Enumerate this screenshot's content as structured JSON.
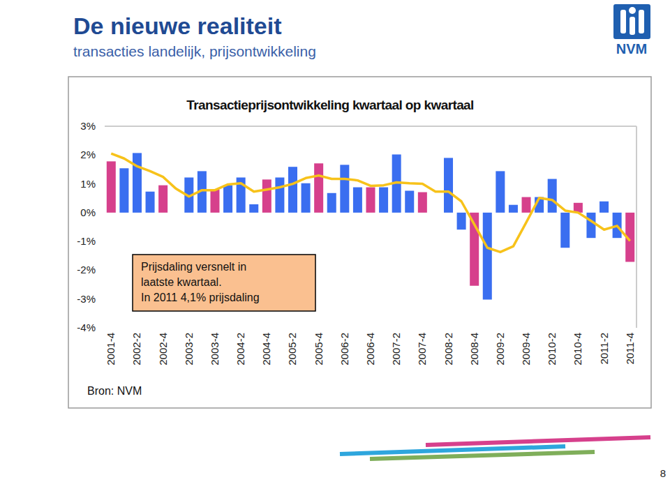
{
  "header": {
    "title": "De nieuwe realiteit",
    "subtitle": "transacties landelijk, prijsontwikkeling",
    "logo_text": "NVM"
  },
  "chart_data": {
    "type": "bar",
    "title": "Transactieprijsontwikkeling kwartaal op kwartaal",
    "categories": [
      "2001-4",
      null,
      "2002-2",
      null,
      "2002-4",
      null,
      "2003-2",
      null,
      "2003-4",
      null,
      "2004-2",
      null,
      "2004-4",
      null,
      "2005-2",
      null,
      "2005-4",
      null,
      "2006-2",
      null,
      "2006-4",
      null,
      "2007-2",
      null,
      "2007-4",
      null,
      "2008-2",
      null,
      "2008-4",
      null,
      "2009-2",
      null,
      "2009-4",
      null,
      "2010-2",
      null,
      "2010-4",
      null,
      "2011-2",
      null,
      "2011-4"
    ],
    "series": [
      {
        "type": "bar",
        "colors": [
          "#D6408C",
          "#3A6EF0",
          "#3A6EF0",
          "#3A6EF0",
          "#D6408C",
          "#3A6EF0",
          "#3A6EF0",
          "#3A6EF0",
          "#D6408C",
          "#3A6EF0",
          "#3A6EF0",
          "#3A6EF0",
          "#D6408C",
          "#3A6EF0",
          "#3A6EF0",
          "#3A6EF0",
          "#D6408C",
          "#3A6EF0",
          "#3A6EF0",
          "#3A6EF0",
          "#D6408C",
          "#3A6EF0",
          "#3A6EF0",
          "#3A6EF0",
          "#D6408C",
          "#3A6EF0",
          "#3A6EF0",
          "#3A6EF0",
          "#D6408C",
          "#3A6EF0",
          "#3A6EF0",
          "#3A6EF0",
          "#D6408C",
          "#3A6EF0",
          "#3A6EF0",
          "#3A6EF0",
          "#D6408C",
          "#3A6EF0",
          "#3A6EF0",
          "#3A6EF0",
          "#D6408C"
        ],
        "values": [
          1.78,
          1.54,
          2.07,
          0.73,
          0.95,
          0,
          1.22,
          1.44,
          0.8,
          0.95,
          1.22,
          0.29,
          1.15,
          1.22,
          1.59,
          1.02,
          1.71,
          0.68,
          1.66,
          0.88,
          0.88,
          0.88,
          2.02,
          0.76,
          0.71,
          0,
          1.9,
          -0.59,
          -2.54,
          -3.02,
          1.44,
          0.27,
          0.54,
          0.54,
          1.17,
          -1.22,
          0.34,
          -0.88,
          0.39,
          -0.88,
          -1.71
        ]
      },
      {
        "type": "line",
        "color": "#F7C21A",
        "values": [
          2.05,
          1.88,
          1.61,
          1.44,
          1.24,
          0.83,
          0.56,
          0.78,
          0.78,
          0.98,
          1.02,
          0.73,
          0.8,
          0.88,
          1.0,
          1.2,
          1.29,
          1.17,
          1.17,
          1.12,
          0.93,
          0.95,
          1.05,
          1.02,
          1.0,
          0.73,
          0.73,
          0.39,
          -0.41,
          -1.22,
          -1.37,
          -1.17,
          -0.34,
          0.51,
          0.44,
          0.07,
          0.0,
          -0.29,
          -0.59,
          -0.46,
          -0.98
        ]
      }
    ],
    "ylim": [
      -4,
      3
    ],
    "yticks": [
      {
        "value": 3,
        "label": "3%"
      },
      {
        "value": 2,
        "label": "2%"
      },
      {
        "value": 1,
        "label": "1%"
      },
      {
        "value": 0,
        "label": "0%"
      },
      {
        "value": -1,
        "label": "-1%"
      },
      {
        "value": -2,
        "label": "-2%"
      },
      {
        "value": -3,
        "label": "-3%"
      },
      {
        "value": -4,
        "label": "-4%"
      }
    ],
    "grid": false,
    "annotation": [
      "Prijsdaling versnelt in",
      "laatste kwartaal.",
      "In 2011 4,1% prijsdaling"
    ],
    "source": "Bron: NVM"
  },
  "page_number": 8
}
